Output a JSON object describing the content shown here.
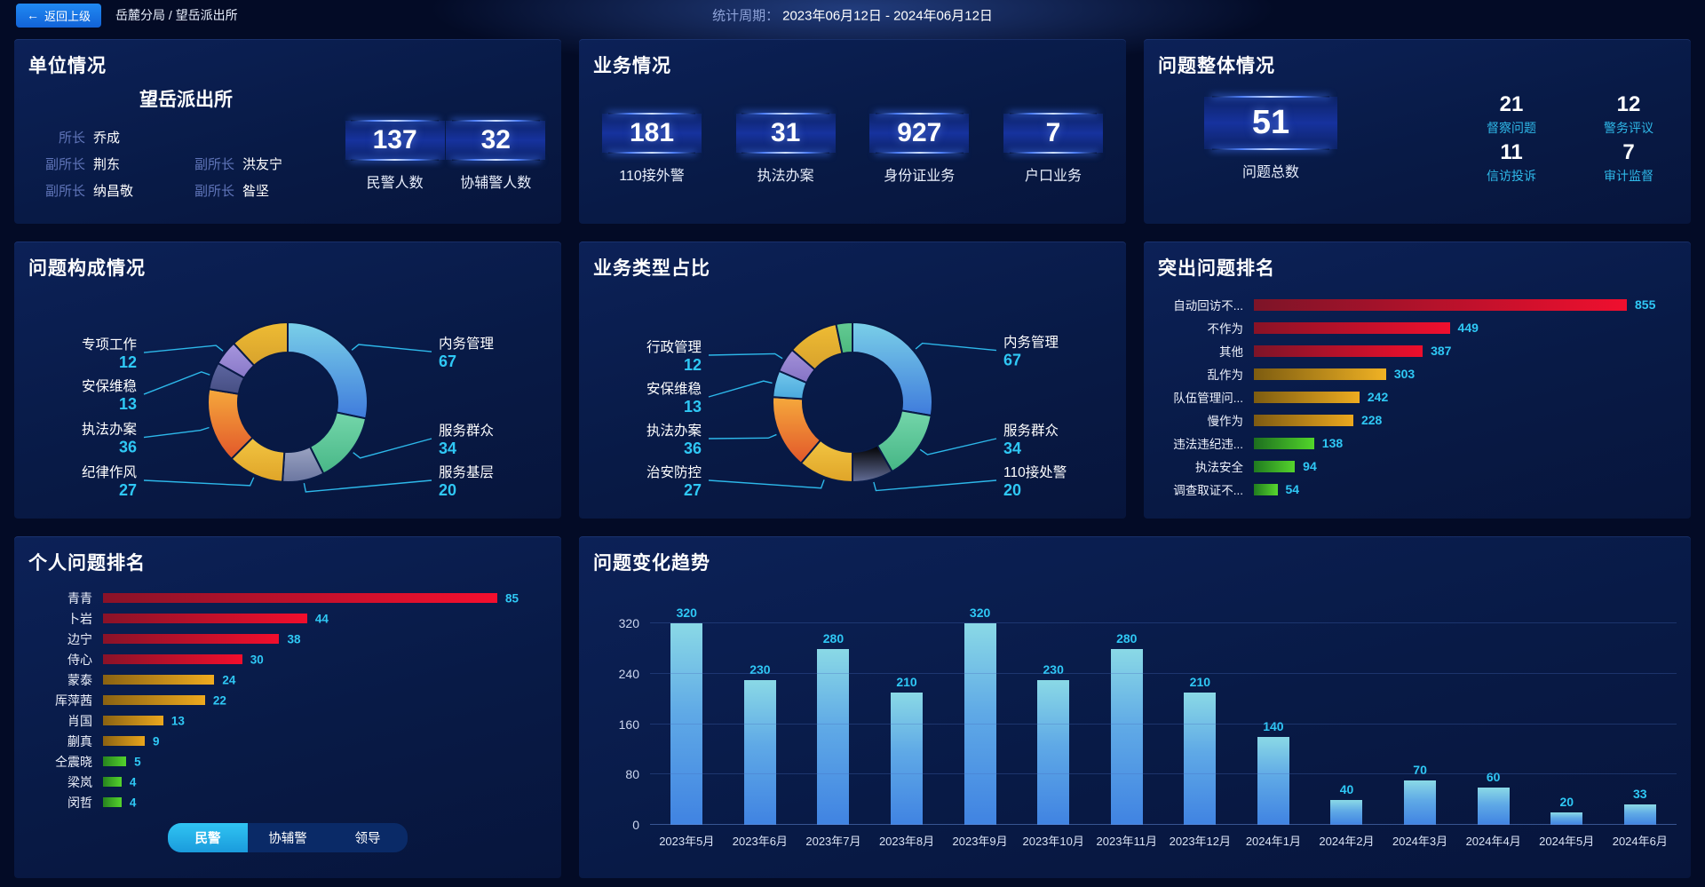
{
  "topbar": {
    "back_label": "返回上级",
    "breadcrumb": "岳麓分局 / 望岳派出所",
    "period_label": "统计周期：",
    "period_value": "2023年06月12日 - 2024年06月12日"
  },
  "unit_panel": {
    "title": "单位情况",
    "station_name": "望岳派出所",
    "leaders": [
      {
        "role": "所长",
        "name": "乔成"
      },
      {
        "role": "副所长",
        "name": "荆东"
      },
      {
        "role": "副所长",
        "name": "洪友宁"
      },
      {
        "role": "副所长",
        "name": "纳昌敬"
      },
      {
        "role": "副所长",
        "name": "昝坚"
      }
    ],
    "stats": [
      {
        "value": "137",
        "label": "民警人数"
      },
      {
        "value": "32",
        "label": "协辅警人数"
      }
    ]
  },
  "business_panel": {
    "title": "业务情况",
    "stats": [
      {
        "value": "181",
        "label": "110接外警"
      },
      {
        "value": "31",
        "label": "执法办案"
      },
      {
        "value": "927",
        "label": "身份证业务"
      },
      {
        "value": "7",
        "label": "户口业务"
      }
    ]
  },
  "problem_panel": {
    "title": "问题整体情况",
    "total": {
      "value": "51",
      "label": "问题总数"
    },
    "stats": [
      {
        "value": "21",
        "label": "督察问题"
      },
      {
        "value": "12",
        "label": "警务评议"
      },
      {
        "value": "11",
        "label": "信访投诉"
      },
      {
        "value": "7",
        "label": "审计监督"
      }
    ]
  },
  "colors": {
    "accent_cyan": "#2fc8f5",
    "leader_line": "#2db8ea",
    "panel_bg": "#081a46",
    "active_tab": "#28b9ee"
  },
  "chart_data": [
    {
      "id": "problem-composition",
      "type": "pie",
      "title": "问题构成情况",
      "slices": [
        {
          "name": "内务管理",
          "value": 67,
          "color": [
            "#7ad0e8",
            "#3f7bdc"
          ]
        },
        {
          "name": "服务群众",
          "value": 34,
          "color": [
            "#74d6aa",
            "#48b787"
          ]
        },
        {
          "name": "服务基层",
          "value": 20,
          "color": [
            "#9aa3c2",
            "#6b76a0"
          ]
        },
        {
          "name": "纪律作风",
          "value": 27,
          "color": [
            "#f2c542",
            "#dfa428"
          ]
        },
        {
          "name": "执法办案",
          "value": 36,
          "color": [
            "#f5a93c",
            "#e2572a"
          ]
        },
        {
          "name": "安保维稳",
          "value": 13,
          "color": [
            "#5d66a0",
            "#464e83"
          ]
        },
        {
          "name": "专项工作",
          "value": 12,
          "color": [
            "#a796de",
            "#8878c8"
          ]
        },
        {
          "name": "",
          "value": 28,
          "color": [
            "#eebc34",
            "#d8a22c"
          ]
        }
      ]
    },
    {
      "id": "business-type",
      "type": "pie",
      "title": "业务类型占比",
      "slices": [
        {
          "name": "内务管理",
          "value": 67,
          "color": [
            "#7ad0e8",
            "#3f7bdc"
          ]
        },
        {
          "name": "服务群众",
          "value": 34,
          "color": [
            "#74d6aa",
            "#45b585"
          ]
        },
        {
          "name": "110接处警",
          "value": 20,
          "color": [
            "#8era0",
            "#636e98"
          ]
        },
        {
          "name": "治安防控",
          "value": 27,
          "color": [
            "#f2c542",
            "#dfa428"
          ]
        },
        {
          "name": "执法办案",
          "value": 36,
          "color": [
            "#f5a93c",
            "#e2572a"
          ]
        },
        {
          "name": "安保维稳",
          "value": 13,
          "color": [
            "#74c8ec",
            "#49a8dc"
          ]
        },
        {
          "name": "行政管理",
          "value": 12,
          "color": [
            "#a391da",
            "#8573c4"
          ]
        },
        {
          "name": "",
          "value": 25,
          "color": [
            "#eebc34",
            "#d8a22c"
          ]
        },
        {
          "name": "",
          "value": 8,
          "color": [
            "#63cb93",
            "#4db87e"
          ]
        }
      ]
    },
    {
      "id": "top-problems",
      "type": "bar",
      "orientation": "horizontal",
      "title": "突出问题排名",
      "categories": [
        "自动回访不...",
        "不作为",
        "其他",
        "乱作为",
        "队伍管理问...",
        "慢作为",
        "违法违纪违...",
        "执法安全",
        "调查取证不..."
      ],
      "values": [
        855,
        449,
        387,
        303,
        242,
        228,
        138,
        94,
        54
      ],
      "colors": [
        [
          "#7d1428",
          "#f00f2e"
        ],
        [
          "#8a1226",
          "#f00f2e"
        ],
        [
          "#7d1428",
          "#ee0e2c"
        ],
        [
          "#7d5c10",
          "#f0b224"
        ],
        [
          "#7d5c10",
          "#eeac20"
        ],
        [
          "#7d5a12",
          "#eca81e"
        ],
        [
          "#1d6e1f",
          "#52d62a"
        ],
        [
          "#1f7a20",
          "#55d42c"
        ],
        [
          "#217d1f",
          "#58d72e"
        ]
      ]
    },
    {
      "id": "personal-ranking",
      "type": "bar",
      "orientation": "horizontal",
      "title": "个人问题排名",
      "categories": [
        "青青",
        "卜岩",
        "边宁",
        "侍心",
        "蒙泰",
        "厍萍茜",
        "肖国",
        "蒯真",
        "仝震晓",
        "梁岚",
        "闵哲"
      ],
      "values": [
        85,
        44,
        38,
        30,
        24,
        22,
        13,
        9,
        5,
        4,
        4
      ],
      "colors": [
        [
          "#8a1228",
          "#f50f2e"
        ],
        [
          "#8a1228",
          "#f20e2c"
        ],
        [
          "#8a1228",
          "#f20e2c"
        ],
        [
          "#8a1228",
          "#f20e2c"
        ],
        [
          "#8a6212",
          "#f0ac1f"
        ],
        [
          "#8a6212",
          "#eeaa1e"
        ],
        [
          "#8a6212",
          "#eca81e"
        ],
        [
          "#8a6212",
          "#eaa61c"
        ],
        [
          "#27831f",
          "#55d42c"
        ],
        [
          "#27831f",
          "#55d42c"
        ],
        [
          "#27831f",
          "#55d42c"
        ]
      ],
      "tabs": [
        {
          "label": "民警",
          "active": true
        },
        {
          "label": "协辅警",
          "active": false
        },
        {
          "label": "领导",
          "active": false
        }
      ]
    },
    {
      "id": "problem-trend",
      "type": "bar",
      "orientation": "vertical",
      "title": "问题变化趋势",
      "categories": [
        "2023年5月",
        "2023年6月",
        "2023年7月",
        "2023年8月",
        "2023年9月",
        "2023年10月",
        "2023年11月",
        "2023年12月",
        "2024年1月",
        "2024年2月",
        "2024年3月",
        "2024年4月",
        "2024年5月",
        "2024年6月"
      ],
      "values": [
        320,
        230,
        280,
        210,
        320,
        230,
        280,
        210,
        140,
        40,
        70,
        60,
        20,
        33
      ],
      "yticks": [
        0,
        80,
        160,
        240,
        320
      ],
      "ylim": [
        0,
        360
      ],
      "grid": true
    }
  ]
}
